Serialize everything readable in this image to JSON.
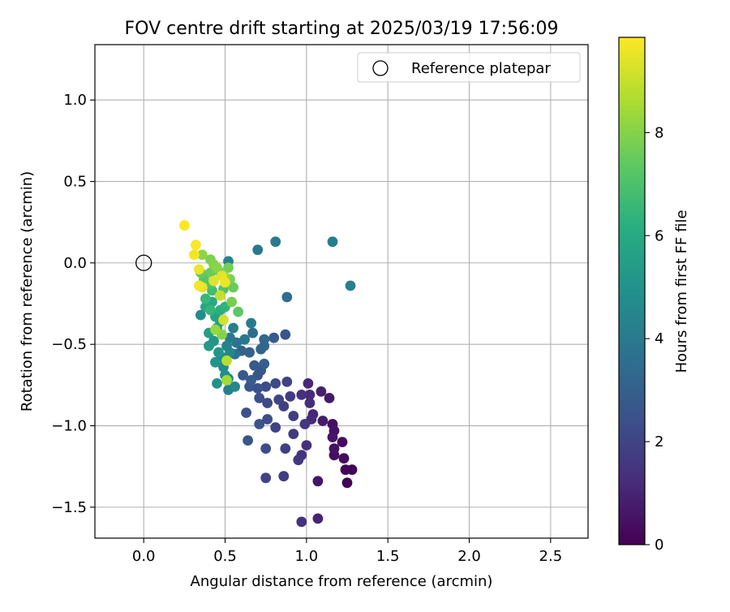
{
  "chart_data": {
    "type": "scatter",
    "title": "FOV centre drift starting at 2025/03/19 17:56:09",
    "xlabel": "Angular distance from reference (arcmin)",
    "ylabel": "Rotation from reference (arcmin)",
    "xlim": [
      -0.3,
      2.73
    ],
    "ylim": [
      -1.69,
      1.34
    ],
    "xticks": [
      0.0,
      0.5,
      1.0,
      1.5,
      2.0,
      2.5
    ],
    "yticks": [
      -1.5,
      -1.0,
      -0.5,
      0.0,
      0.5,
      1.0
    ],
    "xtick_labels": [
      "0.0",
      "0.5",
      "1.0",
      "1.5",
      "2.0",
      "2.5"
    ],
    "ytick_labels": [
      "−1.5",
      "−1.0",
      "−0.5",
      "0.0",
      "0.5",
      "1.0"
    ],
    "grid": true,
    "legend": {
      "placement": "top-right",
      "entries": [
        "Reference platepar"
      ]
    },
    "reference_point": {
      "x": 0.0,
      "y": 0.0,
      "marker": "open-circle"
    },
    "colorbar": {
      "label": "Hours from first FF file",
      "colormap": "viridis",
      "range": [
        0,
        9.85
      ],
      "ticks": [
        0,
        2,
        4,
        6,
        8
      ],
      "tick_labels": [
        "0",
        "2",
        "4",
        "6",
        "8"
      ]
    },
    "series": [
      {
        "points": [
          [
            0.97,
            -1.59,
            1.5
          ],
          [
            1.07,
            -1.57,
            1.0
          ],
          [
            0.75,
            -1.32,
            2.0
          ],
          [
            0.86,
            -1.31,
            1.8
          ],
          [
            1.07,
            -1.34,
            0.6
          ],
          [
            1.25,
            -1.35,
            0.0
          ],
          [
            1.28,
            -1.27,
            0.1
          ],
          [
            1.24,
            -1.27,
            0.2
          ],
          [
            1.23,
            -1.2,
            0.3
          ],
          [
            1.17,
            -1.18,
            0.4
          ],
          [
            1.17,
            -1.14,
            0.5
          ],
          [
            1.22,
            -1.1,
            0.3
          ],
          [
            1.16,
            -1.07,
            0.6
          ],
          [
            1.17,
            -1.03,
            0.5
          ],
          [
            1.16,
            -0.99,
            0.4
          ],
          [
            1.1,
            -0.97,
            0.8
          ],
          [
            1.03,
            -0.96,
            1.2
          ],
          [
            1.04,
            -0.93,
            1.1
          ],
          [
            0.99,
            -0.99,
            1.6
          ],
          [
            1.0,
            -1.12,
            1.4
          ],
          [
            0.97,
            -1.18,
            1.5
          ],
          [
            0.95,
            -1.21,
            1.6
          ],
          [
            0.87,
            -1.14,
            1.9
          ],
          [
            0.92,
            -1.05,
            1.7
          ],
          [
            0.92,
            -0.94,
            1.8
          ],
          [
            0.81,
            -1.01,
            2.0
          ],
          [
            0.75,
            -1.14,
            2.3
          ],
          [
            0.76,
            -0.96,
            2.4
          ],
          [
            0.71,
            -0.99,
            2.5
          ],
          [
            0.64,
            -1.09,
            2.6
          ],
          [
            0.63,
            -0.92,
            2.5
          ],
          [
            0.71,
            -0.83,
            2.4
          ],
          [
            0.76,
            -0.86,
            2.2
          ],
          [
            0.83,
            -0.84,
            2.0
          ],
          [
            0.86,
            -0.88,
            1.9
          ],
          [
            0.9,
            -0.82,
            1.8
          ],
          [
            0.97,
            -0.81,
            1.4
          ],
          [
            1.02,
            -0.81,
            1.2
          ],
          [
            1.02,
            -0.86,
            1.3
          ],
          [
            1.01,
            -0.74,
            1.1
          ],
          [
            1.09,
            -0.79,
            0.9
          ],
          [
            1.14,
            -0.83,
            0.7
          ],
          [
            0.88,
            -0.73,
            2.0
          ],
          [
            0.81,
            -0.74,
            2.2
          ],
          [
            0.75,
            -0.76,
            2.3
          ],
          [
            0.7,
            -0.77,
            2.5
          ],
          [
            0.7,
            -0.69,
            2.6
          ],
          [
            0.65,
            -0.76,
            2.7
          ],
          [
            0.61,
            -0.69,
            2.8
          ],
          [
            0.66,
            -0.72,
            2.9
          ],
          [
            0.72,
            -0.66,
            2.7
          ],
          [
            0.68,
            -0.63,
            2.8
          ],
          [
            0.74,
            -0.62,
            3.0
          ],
          [
            0.65,
            -0.55,
            3.1
          ],
          [
            0.6,
            -0.54,
            3.2
          ],
          [
            0.72,
            -0.53,
            3.2
          ],
          [
            0.74,
            -0.51,
            3.3
          ],
          [
            0.74,
            -0.47,
            3.4
          ],
          [
            0.67,
            -0.43,
            3.5
          ],
          [
            0.8,
            -0.46,
            2.8
          ],
          [
            0.87,
            -0.44,
            2.6
          ],
          [
            0.88,
            -0.21,
            3.6
          ],
          [
            0.7,
            0.08,
            4.0
          ],
          [
            0.81,
            0.13,
            4.1
          ],
          [
            1.16,
            0.13,
            4.2
          ],
          [
            1.27,
            -0.14,
            4.3
          ],
          [
            0.66,
            -0.37,
            4.1
          ],
          [
            0.62,
            -0.47,
            3.9
          ],
          [
            0.57,
            -0.49,
            3.8
          ],
          [
            0.56,
            -0.56,
            3.7
          ],
          [
            0.53,
            -0.46,
            4.0
          ],
          [
            0.55,
            -0.4,
            4.2
          ],
          [
            0.51,
            -0.51,
            4.4
          ],
          [
            0.53,
            -0.55,
            4.5
          ],
          [
            0.48,
            -0.58,
            4.6
          ],
          [
            0.49,
            -0.64,
            4.7
          ],
          [
            0.5,
            -0.69,
            4.8
          ],
          [
            0.52,
            -0.78,
            4.3
          ],
          [
            0.56,
            -0.76,
            4.6
          ],
          [
            0.52,
            -0.71,
            4.5
          ],
          [
            0.45,
            -0.74,
            5.0
          ],
          [
            0.44,
            -0.61,
            5.1
          ],
          [
            0.46,
            -0.55,
            5.2
          ],
          [
            0.4,
            -0.51,
            5.3
          ],
          [
            0.43,
            -0.48,
            5.2
          ],
          [
            0.45,
            -0.4,
            5.4
          ],
          [
            0.4,
            -0.43,
            5.5
          ],
          [
            0.47,
            -0.36,
            5.6
          ],
          [
            0.44,
            -0.33,
            5.7
          ],
          [
            0.35,
            -0.32,
            4.8
          ],
          [
            0.52,
            0.01,
            4.4
          ],
          [
            0.38,
            -0.27,
            5.9
          ],
          [
            0.42,
            -0.24,
            6.0
          ],
          [
            0.47,
            -0.29,
            6.2
          ],
          [
            0.5,
            -0.27,
            6.4
          ],
          [
            0.41,
            -0.29,
            6.5
          ],
          [
            0.38,
            -0.22,
            6.6
          ],
          [
            0.42,
            -0.17,
            6.8
          ],
          [
            0.47,
            -0.2,
            7.0
          ],
          [
            0.49,
            -0.16,
            7.1
          ],
          [
            0.41,
            -0.13,
            7.2
          ],
          [
            0.37,
            -0.1,
            7.3
          ],
          [
            0.35,
            -0.06,
            7.5
          ],
          [
            0.41,
            -0.06,
            7.6
          ],
          [
            0.46,
            -0.05,
            7.7
          ],
          [
            0.52,
            -0.03,
            7.8
          ],
          [
            0.55,
            -0.15,
            7.6
          ],
          [
            0.54,
            -0.24,
            7.8
          ],
          [
            0.58,
            -0.3,
            7.4
          ],
          [
            0.53,
            -0.1,
            7.9
          ],
          [
            0.43,
            -0.01,
            8.0
          ],
          [
            0.45,
            -0.03,
            8.1
          ],
          [
            0.5,
            -0.09,
            8.3
          ],
          [
            0.36,
            0.05,
            8.2
          ],
          [
            0.41,
            0.02,
            7.9
          ],
          [
            0.48,
            -0.44,
            8.0
          ],
          [
            0.44,
            -0.41,
            8.3
          ],
          [
            0.51,
            -0.6,
            8.8
          ],
          [
            0.51,
            -0.72,
            8.5
          ],
          [
            0.47,
            -0.2,
            9.0
          ],
          [
            0.49,
            -0.35,
            9.2
          ],
          [
            0.43,
            -0.11,
            9.4
          ],
          [
            0.48,
            -0.08,
            9.5
          ],
          [
            0.5,
            -0.12,
            9.6
          ],
          [
            0.34,
            -0.14,
            9.7
          ],
          [
            0.34,
            -0.04,
            9.6
          ],
          [
            0.31,
            0.05,
            9.7
          ],
          [
            0.32,
            0.11,
            9.8
          ],
          [
            0.25,
            0.23,
            9.85
          ],
          [
            0.36,
            -0.15,
            9.5
          ]
        ]
      }
    ]
  }
}
